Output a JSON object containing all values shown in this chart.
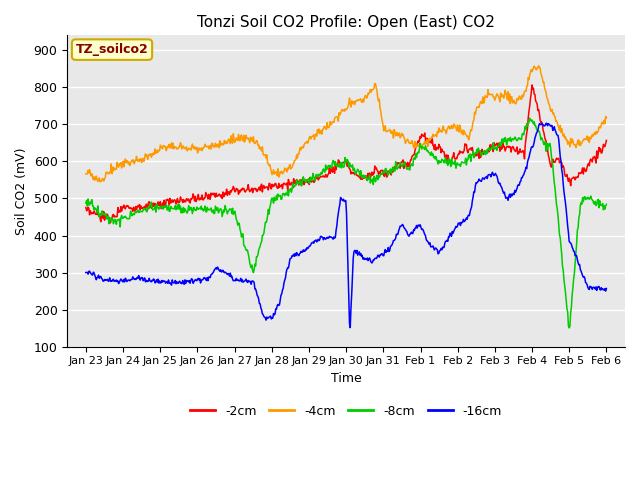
{
  "title": "Tonzi Soil CO2 Profile: Open (East) CO2",
  "xlabel": "Time",
  "ylabel": "Soil CO2 (mV)",
  "ylim": [
    100,
    940
  ],
  "yticks": [
    100,
    200,
    300,
    400,
    500,
    600,
    700,
    800,
    900
  ],
  "background_color": "#e8e8e8",
  "label_box_text": "TZ_soilco2",
  "label_box_facecolor": "#ffffcc",
  "label_box_edgecolor": "#ccaa00",
  "label_box_textcolor": "#880000",
  "colors": {
    "-2cm": "#ff0000",
    "-4cm": "#ff9900",
    "-8cm": "#00cc00",
    "-16cm": "#0000ff"
  },
  "xtick_labels": [
    "Jan 23",
    "Jan 24",
    "Jan 25",
    "Jan 26",
    "Jan 27",
    "Jan 28",
    "Jan 29",
    "Jan 30",
    "Jan 31",
    "Feb 1",
    "Feb 2",
    "Feb 3",
    "Feb 4",
    "Feb 5",
    "Feb 6"
  ],
  "legend_labels": [
    "-2cm",
    "-4cm",
    "-8cm",
    "-16cm"
  ],
  "kx2": [
    0,
    0.3,
    0.7,
    1.0,
    1.3,
    1.7,
    2.0,
    2.3,
    2.7,
    3.0,
    3.5,
    4.0,
    4.5,
    5.0,
    5.5,
    6.0,
    6.2,
    6.5,
    6.8,
    7.0,
    7.2,
    7.5,
    7.8,
    8.0,
    8.3,
    8.5,
    8.7,
    9.0,
    9.2,
    9.5,
    9.8,
    10.0,
    10.2,
    10.5,
    10.8,
    11.0,
    11.2,
    11.5,
    11.8,
    12.0,
    12.2,
    12.5,
    12.7,
    13.0,
    13.3,
    13.7,
    14.0
  ],
  "ky2": [
    465,
    455,
    445,
    480,
    475,
    480,
    480,
    490,
    495,
    500,
    510,
    520,
    525,
    535,
    540,
    545,
    555,
    565,
    595,
    600,
    565,
    555,
    580,
    565,
    575,
    600,
    590,
    670,
    660,
    635,
    600,
    615,
    640,
    620,
    630,
    645,
    640,
    635,
    625,
    810,
    730,
    590,
    610,
    545,
    570,
    610,
    650
  ],
  "kx4": [
    0,
    0.2,
    0.4,
    0.7,
    1.0,
    1.3,
    1.7,
    2.0,
    2.2,
    2.5,
    2.8,
    3.0,
    3.3,
    3.7,
    4.0,
    4.3,
    4.7,
    5.0,
    5.2,
    5.5,
    5.8,
    6.0,
    6.3,
    6.5,
    6.8,
    7.0,
    7.2,
    7.5,
    7.8,
    8.0,
    8.3,
    8.5,
    8.7,
    9.0,
    9.2,
    9.5,
    9.8,
    10.0,
    10.3,
    10.5,
    10.8,
    11.0,
    11.3,
    11.5,
    11.8,
    12.0,
    12.2,
    12.5,
    12.8,
    13.0,
    13.3,
    13.7,
    14.0
  ],
  "ky4": [
    575,
    555,
    548,
    580,
    595,
    600,
    615,
    635,
    640,
    638,
    632,
    638,
    640,
    650,
    660,
    665,
    640,
    570,
    565,
    580,
    635,
    660,
    680,
    695,
    720,
    745,
    760,
    770,
    810,
    690,
    670,
    670,
    650,
    640,
    650,
    680,
    690,
    695,
    660,
    740,
    780,
    775,
    780,
    760,
    780,
    855,
    855,
    740,
    680,
    645,
    650,
    670,
    720
  ],
  "kx8": [
    0,
    0.2,
    0.5,
    0.8,
    1.0,
    1.3,
    1.7,
    2.0,
    2.3,
    2.7,
    3.0,
    3.3,
    3.5,
    3.8,
    4.0,
    4.2,
    4.5,
    5.0,
    5.3,
    5.5,
    5.7,
    6.0,
    6.2,
    6.5,
    6.8,
    7.0,
    7.2,
    7.5,
    7.7,
    8.0,
    8.2,
    8.5,
    8.7,
    9.0,
    9.2,
    9.5,
    9.7,
    10.0,
    10.2,
    10.5,
    10.7,
    11.0,
    11.2,
    11.5,
    11.7,
    12.0,
    12.3,
    12.5,
    13.0,
    13.3,
    13.5,
    13.7,
    14.0
  ],
  "ky8": [
    490,
    480,
    455,
    435,
    445,
    460,
    473,
    478,
    473,
    470,
    470,
    470,
    468,
    465,
    465,
    400,
    300,
    495,
    510,
    520,
    540,
    550,
    560,
    585,
    590,
    600,
    580,
    555,
    550,
    570,
    575,
    595,
    580,
    640,
    630,
    600,
    600,
    590,
    600,
    625,
    620,
    640,
    650,
    660,
    665,
    720,
    650,
    640,
    145,
    490,
    500,
    490,
    475
  ],
  "kx16": [
    0,
    0.2,
    0.5,
    0.8,
    1.0,
    1.3,
    1.7,
    2.0,
    2.5,
    3.0,
    3.3,
    3.5,
    3.7,
    4.0,
    4.2,
    4.5,
    4.8,
    5.0,
    5.2,
    5.5,
    5.7,
    5.9,
    6.1,
    6.3,
    6.5,
    6.7,
    6.85,
    7.0,
    7.1,
    7.2,
    7.4,
    7.5,
    7.7,
    8.0,
    8.2,
    8.5,
    8.7,
    9.0,
    9.2,
    9.5,
    9.8,
    10.0,
    10.3,
    10.5,
    10.8,
    11.0,
    11.3,
    11.5,
    11.8,
    12.0,
    12.2,
    12.5,
    12.7,
    13.0,
    13.5,
    14.0
  ],
  "ky16": [
    300,
    295,
    280,
    278,
    280,
    285,
    280,
    275,
    273,
    280,
    285,
    310,
    305,
    280,
    278,
    275,
    178,
    175,
    220,
    340,
    350,
    360,
    380,
    390,
    395,
    395,
    500,
    490,
    130,
    360,
    350,
    340,
    330,
    350,
    370,
    430,
    400,
    430,
    380,
    355,
    400,
    430,
    450,
    540,
    560,
    570,
    500,
    510,
    570,
    640,
    700,
    700,
    670,
    390,
    260,
    255
  ]
}
